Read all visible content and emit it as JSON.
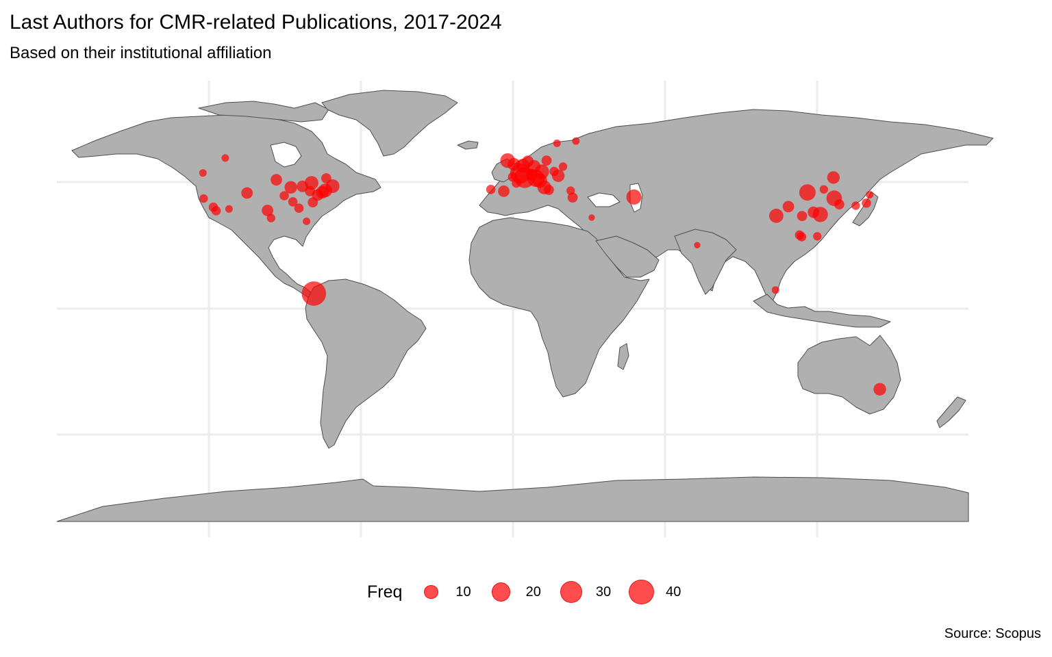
{
  "title": "Last Authors for CMR-related Publications, 2017-2024",
  "subtitle": "Based on their institutional affiliation",
  "caption": "Source: Scopus",
  "legend": {
    "title": "Freq",
    "items": [
      {
        "label": "10",
        "value": 10
      },
      {
        "label": "20",
        "value": 20
      },
      {
        "label": "30",
        "value": 30
      },
      {
        "label": "40",
        "value": 40
      }
    ]
  },
  "colors": {
    "land": "#b0b0b0",
    "border": "#4d4d4d",
    "grid": "#ebebeb",
    "point": "#ff0000",
    "background": "#ffffff"
  },
  "chart_data": {
    "type": "scatter",
    "projection": "equirectangular",
    "xlim": [
      -180,
      180
    ],
    "ylim": [
      -90,
      84
    ],
    "grid": true,
    "legend_position": "bottom",
    "size_variable": "Freq",
    "points": [
      {
        "lon": -78.5,
        "lat": 0,
        "freq": 42
      },
      {
        "lon": 47.9,
        "lat": 38.1,
        "freq": 15
      },
      {
        "lon": 4.8,
        "lat": 45.8,
        "freq": 30
      },
      {
        "lon": 3.0,
        "lat": 47.4,
        "freq": 28
      },
      {
        "lon": -2.0,
        "lat": 52.5,
        "freq": 14
      },
      {
        "lon": 0.5,
        "lat": 51.0,
        "freq": 10
      },
      {
        "lon": -3.5,
        "lat": 40.4,
        "freq": 8
      },
      {
        "lon": -8.6,
        "lat": 41.1,
        "freq": 5
      },
      {
        "lon": 0.0,
        "lat": 46.0,
        "freq": 5
      },
      {
        "lon": 1.5,
        "lat": 43.6,
        "freq": 5
      },
      {
        "lon": 4.0,
        "lat": 50.5,
        "freq": 12
      },
      {
        "lon": 8.5,
        "lat": 50.2,
        "freq": 10
      },
      {
        "lon": 11.5,
        "lat": 48.1,
        "freq": 14
      },
      {
        "lon": 9.2,
        "lat": 45.5,
        "freq": 20
      },
      {
        "lon": 12.5,
        "lat": 41.9,
        "freq": 12
      },
      {
        "lon": 14.3,
        "lat": 40.9,
        "freq": 6
      },
      {
        "lon": 18.0,
        "lat": 46.5,
        "freq": 10
      },
      {
        "lon": 10.7,
        "lat": 44.6,
        "freq": 14
      },
      {
        "lon": 7.5,
        "lat": 46.9,
        "freq": 8
      },
      {
        "lon": 13.4,
        "lat": 52.5,
        "freq": 6
      },
      {
        "lon": 6.0,
        "lat": 52.2,
        "freq": 8
      },
      {
        "lon": 16.4,
        "lat": 48.2,
        "freq": 5
      },
      {
        "lon": 19.9,
        "lat": 50.1,
        "freq": 4
      },
      {
        "lon": 23.7,
        "lat": 37.9,
        "freq": 6
      },
      {
        "lon": 22.9,
        "lat": 40.6,
        "freq": 4
      },
      {
        "lon": 17.5,
        "lat": 59.3,
        "freq": 3
      },
      {
        "lon": 25.0,
        "lat": 60.2,
        "freq": 3
      },
      {
        "lon": 31.2,
        "lat": 30.0,
        "freq": 2
      },
      {
        "lon": 72.9,
        "lat": 19.1,
        "freq": 2
      },
      {
        "lon": 103.8,
        "lat": 1.4,
        "freq": 3
      },
      {
        "lon": 116.4,
        "lat": 39.9,
        "freq": 18
      },
      {
        "lon": 104.1,
        "lat": 30.7,
        "freq": 13
      },
      {
        "lon": 121.5,
        "lat": 31.2,
        "freq": 15
      },
      {
        "lon": 118.8,
        "lat": 32.1,
        "freq": 8
      },
      {
        "lon": 114.3,
        "lat": 30.6,
        "freq": 6
      },
      {
        "lon": 113.3,
        "lat": 23.1,
        "freq": 5
      },
      {
        "lon": 108.9,
        "lat": 34.3,
        "freq": 8
      },
      {
        "lon": 126.7,
        "lat": 45.8,
        "freq": 10
      },
      {
        "lon": 127.0,
        "lat": 37.6,
        "freq": 16
      },
      {
        "lon": 129.0,
        "lat": 35.2,
        "freq": 6
      },
      {
        "lon": 139.7,
        "lat": 35.7,
        "freq": 5
      },
      {
        "lon": 135.5,
        "lat": 34.7,
        "freq": 4
      },
      {
        "lon": 141.0,
        "lat": 39.0,
        "freq": 3
      },
      {
        "lon": 120.3,
        "lat": 22.6,
        "freq": 4
      },
      {
        "lon": 114.1,
        "lat": 22.4,
        "freq": 5
      },
      {
        "lon": 122.9,
        "lat": 41.1,
        "freq": 4
      },
      {
        "lon": 145.0,
        "lat": -37.8,
        "freq": 10
      },
      {
        "lon": -122.3,
        "lat": 47.6,
        "freq": 3
      },
      {
        "lon": -122.0,
        "lat": 37.5,
        "freq": 4
      },
      {
        "lon": -118.2,
        "lat": 34.1,
        "freq": 5
      },
      {
        "lon": -117.1,
        "lat": 32.7,
        "freq": 5
      },
      {
        "lon": -104.9,
        "lat": 39.7,
        "freq": 8
      },
      {
        "lon": -113.5,
        "lat": 53.5,
        "freq": 3
      },
      {
        "lon": -93.3,
        "lat": 44.9,
        "freq": 8
      },
      {
        "lon": -87.6,
        "lat": 41.9,
        "freq": 10
      },
      {
        "lon": -83.0,
        "lat": 42.3,
        "freq": 8
      },
      {
        "lon": -79.4,
        "lat": 43.7,
        "freq": 12
      },
      {
        "lon": -75.2,
        "lat": 40.0,
        "freq": 10
      },
      {
        "lon": -74.0,
        "lat": 40.7,
        "freq": 12
      },
      {
        "lon": -71.1,
        "lat": 42.4,
        "freq": 12
      },
      {
        "lon": -77.0,
        "lat": 38.9,
        "freq": 8
      },
      {
        "lon": -80.0,
        "lat": 40.4,
        "freq": 6
      },
      {
        "lon": -84.4,
        "lat": 33.7,
        "freq": 5
      },
      {
        "lon": -96.8,
        "lat": 32.8,
        "freq": 8
      },
      {
        "lon": -95.4,
        "lat": 29.8,
        "freq": 4
      },
      {
        "lon": -86.8,
        "lat": 36.2,
        "freq": 5
      },
      {
        "lon": -78.9,
        "lat": 36.0,
        "freq": 6
      },
      {
        "lon": -81.4,
        "lat": 28.5,
        "freq": 3
      },
      {
        "lon": -112.0,
        "lat": 33.4,
        "freq": 3
      },
      {
        "lon": -90.2,
        "lat": 38.6,
        "freq": 5
      },
      {
        "lon": -73.6,
        "lat": 45.5,
        "freq": 6
      }
    ]
  }
}
